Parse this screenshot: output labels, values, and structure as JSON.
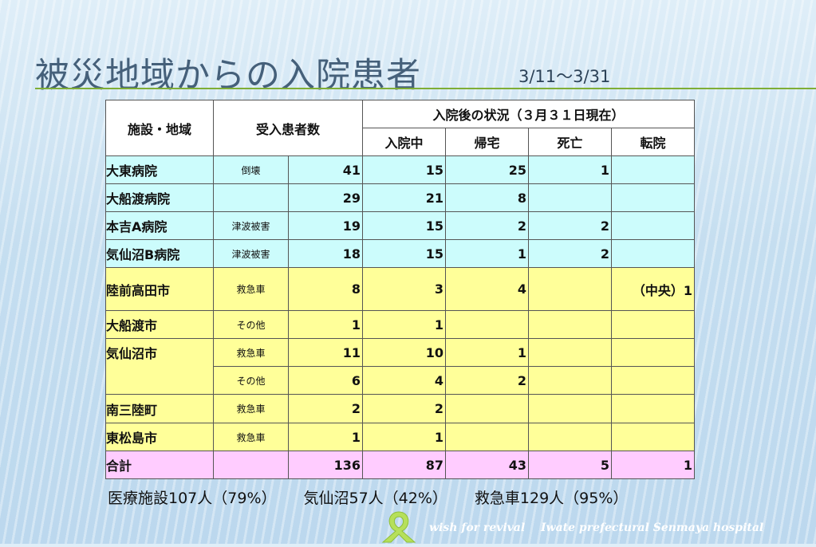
{
  "slide": {
    "title": "被災地域からの入院患者",
    "date_range": "3/11～3/31"
  },
  "table": {
    "header": {
      "facility_region": "施設・地域",
      "admitted_count": "受入患者数",
      "status_group": "入院後の状況（３月３１日現在）",
      "inpatient": "入院中",
      "discharged": "帰宅",
      "deceased": "死亡",
      "transferred": "転院"
    },
    "rows": [
      {
        "name": "大東病院",
        "sub": "倒壊",
        "total": "41",
        "inpatient": "15",
        "home": "25",
        "deceased": "1",
        "transfer": "",
        "color": "blue"
      },
      {
        "name": "大船渡病院",
        "sub": "",
        "total": "29",
        "inpatient": "21",
        "home": "8",
        "deceased": "",
        "transfer": "",
        "color": "blue"
      },
      {
        "name": "本吉A病院",
        "sub": "津波被害",
        "total": "19",
        "inpatient": "15",
        "home": "2",
        "deceased": "2",
        "transfer": "",
        "color": "blue"
      },
      {
        "name": "気仙沼B病院",
        "sub": "津波被害",
        "total": "18",
        "inpatient": "15",
        "home": "1",
        "deceased": "2",
        "transfer": "",
        "color": "blue"
      },
      {
        "name": "陸前高田市",
        "sub": "救急車",
        "total": "8",
        "inpatient": "3",
        "home": "4",
        "deceased": "",
        "transfer": "（中央）1",
        "color": "yellow"
      },
      {
        "name": "大船渡市",
        "sub": "その他",
        "total": "1",
        "inpatient": "1",
        "home": "",
        "deceased": "",
        "transfer": "",
        "color": "yellow"
      },
      {
        "name": "気仙沼市",
        "sub": "救急車",
        "total": "11",
        "inpatient": "10",
        "home": "1",
        "deceased": "",
        "transfer": "",
        "color": "yellow"
      },
      {
        "name": "",
        "sub": "その他",
        "total": "6",
        "inpatient": "4",
        "home": "2",
        "deceased": "",
        "transfer": "",
        "color": "yellow"
      },
      {
        "name": "南三陸町",
        "sub": "救急車",
        "total": "2",
        "inpatient": "2",
        "home": "",
        "deceased": "",
        "transfer": "",
        "color": "yellow"
      },
      {
        "name": "東松島市",
        "sub": "救急車",
        "total": "1",
        "inpatient": "1",
        "home": "",
        "deceased": "",
        "transfer": "",
        "color": "yellow"
      },
      {
        "name": "合計",
        "sub": "",
        "total": "136",
        "inpatient": "87",
        "home": "43",
        "deceased": "5",
        "transfer": "1",
        "color": "pink"
      }
    ]
  },
  "footer": {
    "facilities": "医療施設107人（79%）",
    "kesennuma": "気仙沼57人（42%）",
    "ambulance": "救急車129人（95%）"
  },
  "tagline": {
    "left": "wish for revival",
    "right": "Iwate prefectural Senmaya hospital"
  },
  "colors": {
    "title": "#45607a",
    "rule": "#7fae35",
    "row_blue": "#ccfcfc",
    "row_yellow": "#ffff99",
    "row_pink": "#ffccff",
    "ribbon": "#b6e05a"
  },
  "icons": [
    "ribbon-logo-icon"
  ]
}
